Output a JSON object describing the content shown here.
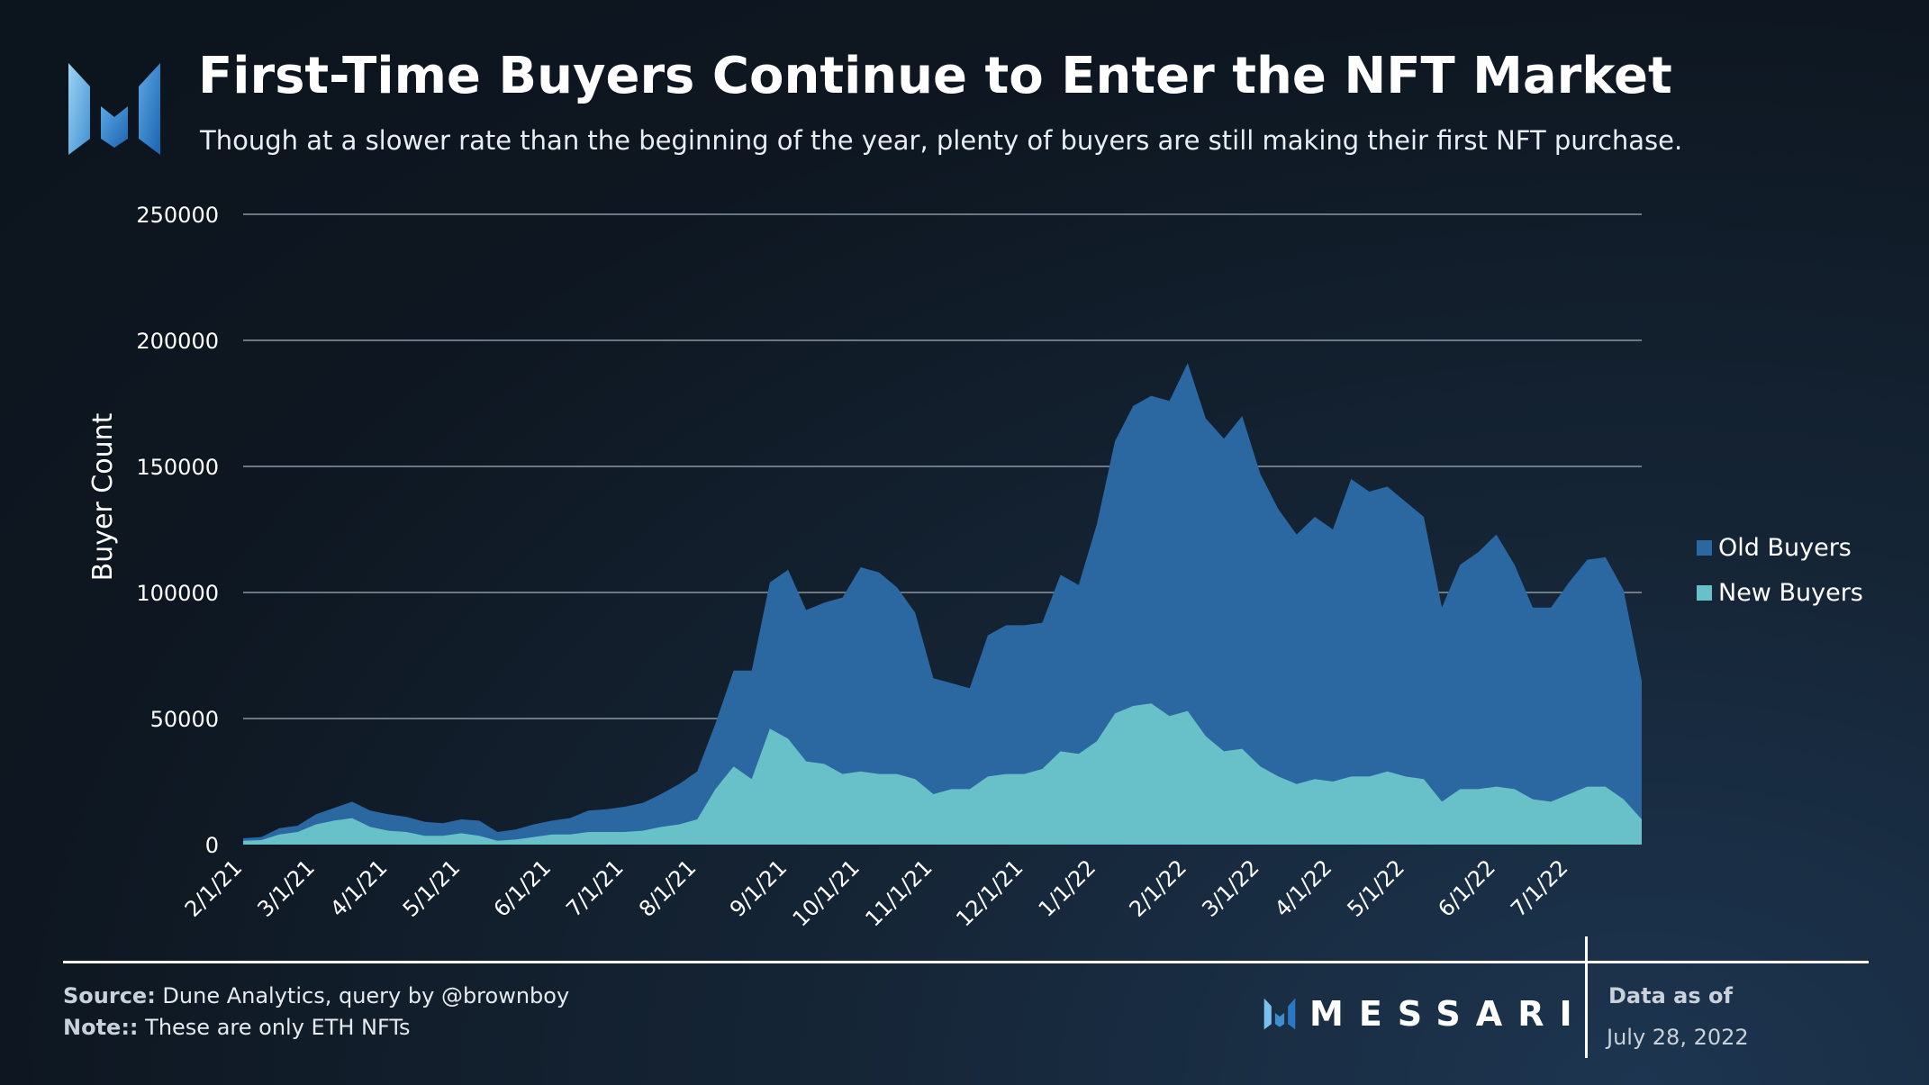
{
  "header": {
    "title": "First-Time Buyers Continue to Enter the NFT Market",
    "subtitle": "Though at a slower rate than the beginning of the year, plenty of buyers are still making their first NFT purchase."
  },
  "footer": {
    "source_label": "Source:",
    "source_text": " Dune Analytics, query by @brownboy",
    "note_label": "Note::",
    "note_text": " These are only ETH NFTs",
    "brand": "MESSARI",
    "data_as_of_label": "Data as of",
    "data_as_of_date": "July 28, 2022"
  },
  "colors": {
    "old_buyers": "#2b67a1",
    "new_buyers": "#68c1c8",
    "grid": "#8a96a3"
  },
  "chart_data": {
    "type": "area",
    "stacked": true,
    "title": "First-Time Buyers Continue to Enter the NFT Market",
    "ylabel": "Buyer Count",
    "xlabel": "",
    "ylim": [
      0,
      250000
    ],
    "y_ticks": [
      "0",
      "50000",
      "100000",
      "150000",
      "200000",
      "250000"
    ],
    "x_tick_labels": [
      "2/1/21",
      "3/1/21",
      "4/1/21",
      "5/1/21",
      "6/1/21",
      "7/1/21",
      "8/1/21",
      "9/1/21",
      "10/1/21",
      "11/1/21",
      "12/1/21",
      "1/1/22",
      "2/1/22",
      "3/1/22",
      "4/1/22",
      "5/1/22",
      "6/1/22",
      "7/1/22"
    ],
    "x_tick_weeks": [
      0,
      4,
      8,
      12,
      17,
      21,
      25,
      30,
      34,
      38,
      43,
      47,
      52,
      56,
      60,
      64,
      69,
      73
    ],
    "weeks": 78,
    "legend": [
      "Old Buyers",
      "New Buyers"
    ],
    "legend_position": "right",
    "series": [
      {
        "name": "New Buyers",
        "values": [
          1500,
          1800,
          4000,
          5000,
          8000,
          9500,
          10500,
          7000,
          5500,
          5000,
          3500,
          3500,
          4500,
          3500,
          1500,
          2000,
          3000,
          4000,
          4000,
          5000,
          5000,
          5000,
          5500,
          7000,
          8000,
          10000,
          22000,
          31000,
          26000,
          46000,
          42000,
          33000,
          32000,
          28000,
          29000,
          28000,
          28000,
          26000,
          20000,
          22000,
          22000,
          27000,
          28000,
          28000,
          30000,
          37000,
          36000,
          41000,
          52000,
          55000,
          56000,
          51000,
          53000,
          43000,
          37000,
          38000,
          31000,
          27000,
          24000,
          26000,
          25000,
          27000,
          27000,
          29000,
          27000,
          26000,
          17000,
          22000,
          22000,
          23000,
          22000,
          18000,
          17000,
          20000,
          23000,
          23000,
          18000,
          10000
        ]
      },
      {
        "name": "Old Buyers",
        "values": [
          1000,
          1200,
          2500,
          2500,
          4000,
          5000,
          6500,
          6500,
          6500,
          6000,
          5500,
          5000,
          5500,
          6000,
          3500,
          4000,
          5000,
          5500,
          6500,
          8500,
          9000,
          10000,
          11000,
          13000,
          16000,
          19000,
          26000,
          38000,
          43000,
          58000,
          67000,
          60000,
          64000,
          70000,
          81000,
          80000,
          74000,
          66000,
          46000,
          42000,
          40000,
          56000,
          59000,
          59000,
          58000,
          70000,
          67000,
          86000,
          108000,
          119000,
          122000,
          125000,
          138000,
          126000,
          124000,
          132000,
          116000,
          106000,
          99000,
          104000,
          100000,
          118000,
          113000,
          113000,
          109000,
          104000,
          77000,
          89000,
          94000,
          100000,
          89000,
          76000,
          77000,
          84000,
          90000,
          91000,
          83000,
          55000
        ]
      }
    ]
  }
}
